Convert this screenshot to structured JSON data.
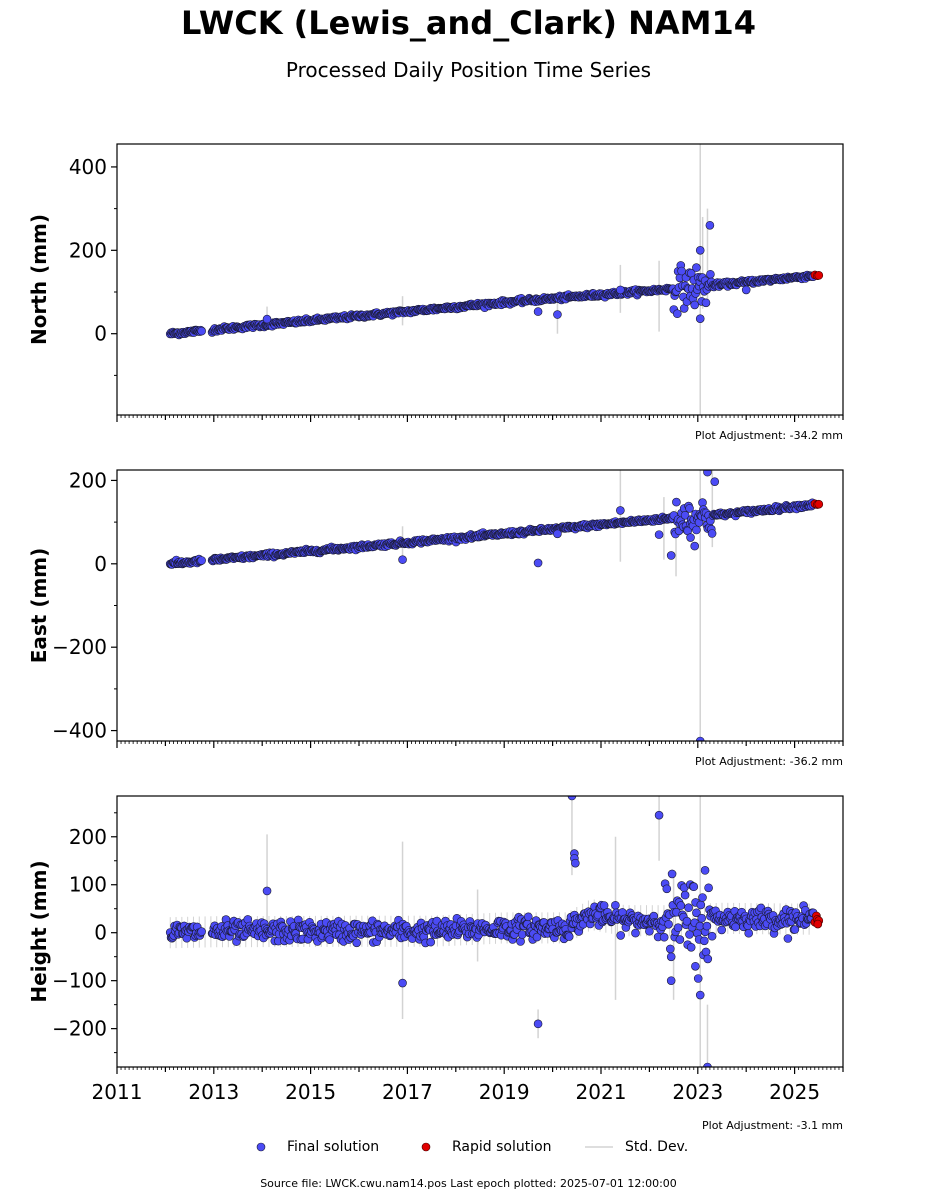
{
  "title": "LWCK (Lewis_and_Clark) NAM14",
  "subtitle": "Processed Daily Position Time Series",
  "footer": "Source file: LWCK.cwu.nam14.pos  Last epoch plotted: 2025-07-01 12:00:00",
  "legend": {
    "final": "Final solution",
    "rapid": "Rapid solution",
    "std": "Std. Dev."
  },
  "colors": {
    "final": "#4b4bf5",
    "rapid": "#e00000",
    "std": "#d3d3d3",
    "edge": "#1a1a2e"
  },
  "chart_data": [
    {
      "type": "scatter",
      "ylabel": "North (mm)",
      "adjustment": "Plot Adjustment: -34.2 mm",
      "xlim": [
        2011,
        2026
      ],
      "ylim": [
        -195,
        455
      ],
      "yticks": [
        0,
        200,
        400
      ],
      "yminor": [
        -100,
        100,
        300
      ],
      "trend": [
        {
          "x": 2012.1,
          "y": 0
        },
        {
          "x": 2019,
          "y": 75
        },
        {
          "x": 2022,
          "y": 103
        },
        {
          "x": 2023.5,
          "y": 118
        },
        {
          "x": 2025.45,
          "y": 140
        }
      ],
      "scatter_amp": 4,
      "gaps": [
        [
          2012.75,
          2012.95
        ]
      ],
      "disturbed": {
        "x0": 2022.5,
        "x1": 2023.3,
        "amp": 40,
        "y_center": 112
      },
      "outliers": [
        {
          "x": 2019.7,
          "y": 53
        },
        {
          "x": 2020.1,
          "y": 46
        },
        {
          "x": 2014.1,
          "y": 35
        },
        {
          "x": 2023.05,
          "y": 36
        },
        {
          "x": 2023.05,
          "y": 200
        },
        {
          "x": 2023.25,
          "y": 260
        },
        {
          "x": 2021.4,
          "y": 105
        },
        {
          "x": 2024.0,
          "y": 105
        }
      ],
      "std_lines": [
        {
          "x": 2023.05,
          "y0": -195,
          "y1": 455
        },
        {
          "x": 2023.2,
          "y0": 80,
          "y1": 300
        },
        {
          "x": 2023.1,
          "y0": 60,
          "y1": 280
        },
        {
          "x": 2021.4,
          "y0": 50,
          "y1": 165
        },
        {
          "x": 2022.2,
          "y0": 5,
          "y1": 175
        },
        {
          "x": 2020.1,
          "y0": 0,
          "y1": 90
        },
        {
          "x": 2016.9,
          "y0": 20,
          "y1": 90
        },
        {
          "x": 2014.1,
          "y0": 15,
          "y1": 65
        }
      ],
      "rapid": [
        {
          "x": 2025.42,
          "y": 141
        },
        {
          "x": 2025.47,
          "y": 139
        },
        {
          "x": 2025.5,
          "y": 140
        }
      ]
    },
    {
      "type": "scatter",
      "ylabel": "East (mm)",
      "adjustment": "Plot Adjustment: -36.2 mm",
      "xlim": [
        2011,
        2026
      ],
      "ylim": [
        -425,
        225
      ],
      "yticks": [
        -400,
        -200,
        0,
        200
      ],
      "yminor": [
        -300,
        -100,
        100
      ],
      "trend": [
        {
          "x": 2012.1,
          "y": 0
        },
        {
          "x": 2019,
          "y": 72
        },
        {
          "x": 2022,
          "y": 105
        },
        {
          "x": 2023.5,
          "y": 118
        },
        {
          "x": 2025.45,
          "y": 143
        }
      ],
      "scatter_amp": 4,
      "gaps": [
        [
          2012.75,
          2012.95
        ]
      ],
      "disturbed": {
        "x0": 2022.5,
        "x1": 2023.3,
        "amp": 40,
        "y_center": 110
      },
      "outliers": [
        {
          "x": 2019.7,
          "y": 2
        },
        {
          "x": 2016.9,
          "y": 10
        },
        {
          "x": 2021.4,
          "y": 128
        },
        {
          "x": 2022.2,
          "y": 70
        },
        {
          "x": 2022.45,
          "y": 20
        },
        {
          "x": 2023.2,
          "y": 220
        },
        {
          "x": 2023.35,
          "y": 197
        },
        {
          "x": 2023.05,
          "y": -425
        },
        {
          "x": 2022.85,
          "y": 63
        },
        {
          "x": 2020.1,
          "y": 72
        }
      ],
      "std_lines": [
        {
          "x": 2023.05,
          "y0": -425,
          "y1": 225
        },
        {
          "x": 2021.4,
          "y0": 5,
          "y1": 225
        },
        {
          "x": 2022.3,
          "y0": 10,
          "y1": 160
        },
        {
          "x": 2023.3,
          "y0": 40,
          "y1": 225
        },
        {
          "x": 2016.9,
          "y0": 0,
          "y1": 90
        },
        {
          "x": 2022.55,
          "y0": -30,
          "y1": 130
        }
      ],
      "rapid": [
        {
          "x": 2025.42,
          "y": 144
        },
        {
          "x": 2025.47,
          "y": 142
        },
        {
          "x": 2025.5,
          "y": 143
        }
      ]
    },
    {
      "type": "scatter",
      "ylabel": "Height (mm)",
      "adjustment": "Plot Adjustment: -3.1 mm",
      "xlabel": "",
      "xlim": [
        2011,
        2026
      ],
      "ylim": [
        -280,
        285
      ],
      "yticks": [
        -200,
        -100,
        0,
        100,
        200
      ],
      "yminor": [
        -250,
        -150,
        -50,
        50,
        150,
        250
      ],
      "xticks": [
        2011,
        2013,
        2015,
        2017,
        2019,
        2021,
        2023,
        2025
      ],
      "trend": [
        {
          "x": 2012.1,
          "y": 0
        },
        {
          "x": 2013,
          "y": 2
        },
        {
          "x": 2016,
          "y": 3
        },
        {
          "x": 2017.5,
          "y": 3
        },
        {
          "x": 2019,
          "y": 10
        },
        {
          "x": 2020.3,
          "y": 10
        },
        {
          "x": 2020.8,
          "y": 38
        },
        {
          "x": 2021.5,
          "y": 25
        },
        {
          "x": 2022.4,
          "y": 25
        },
        {
          "x": 2023.5,
          "y": 30
        },
        {
          "x": 2025.45,
          "y": 28
        }
      ],
      "scatter_amp": 18,
      "gaps": [
        [
          2012.75,
          2012.95
        ]
      ],
      "disturbed": {
        "x0": 2022.3,
        "x1": 2023.3,
        "amp": 75,
        "y_center": 20
      },
      "outliers": [
        {
          "x": 2014.1,
          "y": 87
        },
        {
          "x": 2016.9,
          "y": -105
        },
        {
          "x": 2019.7,
          "y": -190
        },
        {
          "x": 2020.4,
          "y": 285
        },
        {
          "x": 2020.45,
          "y": 165
        },
        {
          "x": 2020.45,
          "y": 155
        },
        {
          "x": 2020.47,
          "y": 145
        },
        {
          "x": 2022.2,
          "y": 245
        },
        {
          "x": 2023.15,
          "y": 130
        },
        {
          "x": 2023.05,
          "y": -130
        },
        {
          "x": 2023.2,
          "y": -280
        },
        {
          "x": 2022.45,
          "y": -100
        },
        {
          "x": 2022.95,
          "y": -70
        }
      ],
      "std_lines": [
        {
          "x": 2023.05,
          "y0": -280,
          "y1": 285
        },
        {
          "x": 2014.1,
          "y0": 10,
          "y1": 205
        },
        {
          "x": 2016.9,
          "y0": -180,
          "y1": 190
        },
        {
          "x": 2020.4,
          "y0": 120,
          "y1": 285
        },
        {
          "x": 2021.3,
          "y0": -140,
          "y1": 200
        },
        {
          "x": 2022.2,
          "y0": 150,
          "y1": 285
        },
        {
          "x": 2019.7,
          "y0": -220,
          "y1": -160
        },
        {
          "x": 2023.2,
          "y0": -280,
          "y1": -150
        },
        {
          "x": 2022.5,
          "y0": -140,
          "y1": 120
        },
        {
          "x": 2018.45,
          "y0": -60,
          "y1": 90
        }
      ],
      "rapid": [
        {
          "x": 2025.42,
          "y": 22
        },
        {
          "x": 2025.45,
          "y": 35
        },
        {
          "x": 2025.47,
          "y": 28
        },
        {
          "x": 2025.5,
          "y": 25
        },
        {
          "x": 2025.48,
          "y": 18
        }
      ]
    }
  ]
}
